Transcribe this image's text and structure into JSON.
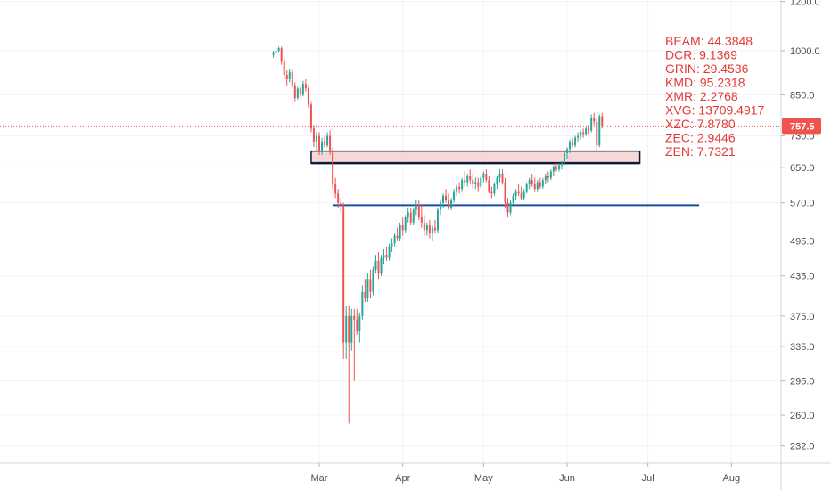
{
  "chart_data": {
    "type": "candlestick",
    "title": "",
    "xlabel": "",
    "ylabel": "",
    "y_scale": "log",
    "y_ticks": [
      "1200.0",
      "1000.0",
      "850.0",
      "757.5",
      "730.0",
      "650.0",
      "570.0",
      "495.0",
      "435.0",
      "375.0",
      "335.0",
      "295.0",
      "260.0",
      "232.0"
    ],
    "x_ticks": [
      "Mar",
      "Apr",
      "May",
      "Jun",
      "Jul",
      "Aug"
    ],
    "grid": true,
    "last_price": 757.5,
    "colors": {
      "up": "#26a69a",
      "down": "#ef5350",
      "last_price": "#ef5350",
      "zone": "#f7d3d3",
      "zone_border": "#0c1a3d",
      "support": "#1a4ea3",
      "legend_text": "#e53935"
    },
    "legend": [
      "BEAM: 44.3848",
      "DCR: 9.1369",
      "GRIN: 29.4536",
      "KMD: 95.2318",
      "XMR: 2.2768",
      "XVG: 13709.4917",
      "XZC: 7.8780",
      "ZEC: 2.9446",
      "ZEN: 7.7321"
    ],
    "drawings": {
      "resistance_zone": {
        "low": 660,
        "high": 690,
        "from": "Feb-27",
        "to": "Jun-28"
      },
      "support_line": {
        "level": 565,
        "from": "Mar-06",
        "to": "Jul-20"
      }
    },
    "candles": [
      {
        "d": "Feb-13",
        "o": 985,
        "h": 1000,
        "l": 975,
        "c": 995
      },
      {
        "d": "Feb-14",
        "o": 995,
        "h": 1010,
        "l": 985,
        "c": 1000
      },
      {
        "d": "Feb-15",
        "o": 1000,
        "h": 1015,
        "l": 995,
        "c": 1010
      },
      {
        "d": "Feb-16",
        "o": 1010,
        "h": 1015,
        "l": 950,
        "c": 960
      },
      {
        "d": "Feb-17",
        "o": 960,
        "h": 975,
        "l": 900,
        "c": 915
      },
      {
        "d": "Feb-18",
        "o": 915,
        "h": 930,
        "l": 880,
        "c": 900
      },
      {
        "d": "Feb-19",
        "o": 900,
        "h": 935,
        "l": 890,
        "c": 925
      },
      {
        "d": "Feb-20",
        "o": 925,
        "h": 935,
        "l": 870,
        "c": 880
      },
      {
        "d": "Feb-21",
        "o": 880,
        "h": 890,
        "l": 830,
        "c": 840
      },
      {
        "d": "Feb-22",
        "o": 840,
        "h": 875,
        "l": 835,
        "c": 870
      },
      {
        "d": "Feb-23",
        "o": 870,
        "h": 880,
        "l": 840,
        "c": 850
      },
      {
        "d": "Feb-24",
        "o": 850,
        "h": 895,
        "l": 845,
        "c": 885
      },
      {
        "d": "Feb-25",
        "o": 885,
        "h": 900,
        "l": 860,
        "c": 870
      },
      {
        "d": "Feb-26",
        "o": 870,
        "h": 880,
        "l": 810,
        "c": 820
      },
      {
        "d": "Feb-27",
        "o": 820,
        "h": 830,
        "l": 740,
        "c": 750
      },
      {
        "d": "Feb-28",
        "o": 750,
        "h": 760,
        "l": 700,
        "c": 715
      },
      {
        "d": "Feb-29",
        "o": 715,
        "h": 740,
        "l": 690,
        "c": 730
      },
      {
        "d": "Mar-01",
        "o": 730,
        "h": 740,
        "l": 680,
        "c": 690
      },
      {
        "d": "Mar-02",
        "o": 690,
        "h": 725,
        "l": 680,
        "c": 715
      },
      {
        "d": "Mar-03",
        "o": 715,
        "h": 730,
        "l": 700,
        "c": 705
      },
      {
        "d": "Mar-04",
        "o": 705,
        "h": 740,
        "l": 700,
        "c": 730
      },
      {
        "d": "Mar-05",
        "o": 730,
        "h": 745,
        "l": 680,
        "c": 690
      },
      {
        "d": "Mar-06",
        "o": 690,
        "h": 700,
        "l": 600,
        "c": 610
      },
      {
        "d": "Mar-07",
        "o": 610,
        "h": 625,
        "l": 580,
        "c": 590
      },
      {
        "d": "Mar-08",
        "o": 590,
        "h": 600,
        "l": 560,
        "c": 570
      },
      {
        "d": "Mar-09",
        "o": 570,
        "h": 580,
        "l": 550,
        "c": 565
      },
      {
        "d": "Mar-10",
        "o": 565,
        "h": 570,
        "l": 320,
        "c": 340
      },
      {
        "d": "Mar-11",
        "o": 340,
        "h": 390,
        "l": 320,
        "c": 375
      },
      {
        "d": "Mar-12",
        "o": 375,
        "h": 390,
        "l": 252,
        "c": 340
      },
      {
        "d": "Mar-13",
        "o": 340,
        "h": 385,
        "l": 330,
        "c": 375
      },
      {
        "d": "Mar-14",
        "o": 375,
        "h": 385,
        "l": 295,
        "c": 370
      },
      {
        "d": "Mar-15",
        "o": 370,
        "h": 385,
        "l": 350,
        "c": 355
      },
      {
        "d": "Mar-16",
        "o": 355,
        "h": 380,
        "l": 340,
        "c": 375
      },
      {
        "d": "Mar-17",
        "o": 375,
        "h": 420,
        "l": 370,
        "c": 410
      },
      {
        "d": "Mar-18",
        "o": 410,
        "h": 430,
        "l": 395,
        "c": 400
      },
      {
        "d": "Mar-19",
        "o": 400,
        "h": 440,
        "l": 395,
        "c": 430
      },
      {
        "d": "Mar-20",
        "o": 430,
        "h": 445,
        "l": 400,
        "c": 410
      },
      {
        "d": "Mar-21",
        "o": 410,
        "h": 450,
        "l": 405,
        "c": 445
      },
      {
        "d": "Mar-22",
        "o": 445,
        "h": 470,
        "l": 440,
        "c": 460
      },
      {
        "d": "Mar-23",
        "o": 460,
        "h": 475,
        "l": 430,
        "c": 440
      },
      {
        "d": "Mar-24",
        "o": 440,
        "h": 470,
        "l": 435,
        "c": 465
      },
      {
        "d": "Mar-25",
        "o": 465,
        "h": 480,
        "l": 455,
        "c": 470
      },
      {
        "d": "Mar-26",
        "o": 470,
        "h": 485,
        "l": 460,
        "c": 465
      },
      {
        "d": "Mar-27",
        "o": 465,
        "h": 490,
        "l": 460,
        "c": 485
      },
      {
        "d": "Mar-28",
        "o": 485,
        "h": 500,
        "l": 475,
        "c": 490
      },
      {
        "d": "Mar-29",
        "o": 490,
        "h": 510,
        "l": 485,
        "c": 505
      },
      {
        "d": "Mar-30",
        "o": 505,
        "h": 520,
        "l": 495,
        "c": 500
      },
      {
        "d": "Mar-31",
        "o": 500,
        "h": 530,
        "l": 495,
        "c": 525
      },
      {
        "d": "Apr-01",
        "o": 525,
        "h": 540,
        "l": 505,
        "c": 515
      },
      {
        "d": "Apr-02",
        "o": 515,
        "h": 545,
        "l": 510,
        "c": 540
      },
      {
        "d": "Apr-03",
        "o": 540,
        "h": 560,
        "l": 530,
        "c": 550
      },
      {
        "d": "Apr-04",
        "o": 550,
        "h": 560,
        "l": 525,
        "c": 530
      },
      {
        "d": "Apr-05",
        "o": 530,
        "h": 560,
        "l": 525,
        "c": 555
      },
      {
        "d": "Apr-06",
        "o": 555,
        "h": 575,
        "l": 545,
        "c": 565
      },
      {
        "d": "Apr-07",
        "o": 565,
        "h": 575,
        "l": 535,
        "c": 540
      },
      {
        "d": "Apr-08",
        "o": 540,
        "h": 565,
        "l": 520,
        "c": 530
      },
      {
        "d": "Apr-09",
        "o": 530,
        "h": 545,
        "l": 505,
        "c": 515
      },
      {
        "d": "Apr-10",
        "o": 515,
        "h": 530,
        "l": 505,
        "c": 525
      },
      {
        "d": "Apr-11",
        "o": 525,
        "h": 535,
        "l": 500,
        "c": 510
      },
      {
        "d": "Apr-12",
        "o": 510,
        "h": 525,
        "l": 495,
        "c": 520
      },
      {
        "d": "Apr-13",
        "o": 520,
        "h": 535,
        "l": 510,
        "c": 515
      },
      {
        "d": "Apr-14",
        "o": 515,
        "h": 560,
        "l": 510,
        "c": 555
      },
      {
        "d": "Apr-15",
        "o": 555,
        "h": 575,
        "l": 545,
        "c": 570
      },
      {
        "d": "Apr-16",
        "o": 570,
        "h": 590,
        "l": 560,
        "c": 585
      },
      {
        "d": "Apr-17",
        "o": 585,
        "h": 600,
        "l": 570,
        "c": 575
      },
      {
        "d": "Apr-18",
        "o": 575,
        "h": 590,
        "l": 555,
        "c": 560
      },
      {
        "d": "Apr-19",
        "o": 560,
        "h": 580,
        "l": 555,
        "c": 575
      },
      {
        "d": "Apr-20",
        "o": 575,
        "h": 600,
        "l": 570,
        "c": 595
      },
      {
        "d": "Apr-21",
        "o": 595,
        "h": 610,
        "l": 585,
        "c": 605
      },
      {
        "d": "Apr-22",
        "o": 605,
        "h": 615,
        "l": 590,
        "c": 600
      },
      {
        "d": "Apr-23",
        "o": 600,
        "h": 625,
        "l": 595,
        "c": 620
      },
      {
        "d": "Apr-24",
        "o": 620,
        "h": 640,
        "l": 605,
        "c": 615
      },
      {
        "d": "Apr-25",
        "o": 615,
        "h": 635,
        "l": 605,
        "c": 630
      },
      {
        "d": "Apr-26",
        "o": 630,
        "h": 645,
        "l": 610,
        "c": 620
      },
      {
        "d": "Apr-27",
        "o": 620,
        "h": 635,
        "l": 600,
        "c": 610
      },
      {
        "d": "Apr-28",
        "o": 610,
        "h": 625,
        "l": 600,
        "c": 615
      },
      {
        "d": "Apr-29",
        "o": 615,
        "h": 625,
        "l": 595,
        "c": 605
      },
      {
        "d": "Apr-30",
        "o": 605,
        "h": 630,
        "l": 600,
        "c": 625
      },
      {
        "d": "May-01",
        "o": 625,
        "h": 640,
        "l": 615,
        "c": 635
      },
      {
        "d": "May-02",
        "o": 635,
        "h": 645,
        "l": 615,
        "c": 620
      },
      {
        "d": "May-03",
        "o": 620,
        "h": 630,
        "l": 590,
        "c": 595
      },
      {
        "d": "May-04",
        "o": 595,
        "h": 605,
        "l": 580,
        "c": 590
      },
      {
        "d": "May-05",
        "o": 590,
        "h": 615,
        "l": 585,
        "c": 610
      },
      {
        "d": "May-06",
        "o": 610,
        "h": 630,
        "l": 600,
        "c": 625
      },
      {
        "d": "May-07",
        "o": 625,
        "h": 645,
        "l": 615,
        "c": 635
      },
      {
        "d": "May-08",
        "o": 635,
        "h": 645,
        "l": 610,
        "c": 615
      },
      {
        "d": "May-09",
        "o": 615,
        "h": 625,
        "l": 560,
        "c": 570
      },
      {
        "d": "May-10",
        "o": 570,
        "h": 580,
        "l": 540,
        "c": 550
      },
      {
        "d": "May-11",
        "o": 550,
        "h": 575,
        "l": 545,
        "c": 570
      },
      {
        "d": "May-12",
        "o": 570,
        "h": 590,
        "l": 565,
        "c": 585
      },
      {
        "d": "May-13",
        "o": 585,
        "h": 600,
        "l": 575,
        "c": 595
      },
      {
        "d": "May-14",
        "o": 595,
        "h": 610,
        "l": 585,
        "c": 590
      },
      {
        "d": "May-15",
        "o": 590,
        "h": 605,
        "l": 575,
        "c": 580
      },
      {
        "d": "May-16",
        "o": 580,
        "h": 600,
        "l": 575,
        "c": 595
      },
      {
        "d": "May-17",
        "o": 595,
        "h": 615,
        "l": 590,
        "c": 610
      },
      {
        "d": "May-18",
        "o": 610,
        "h": 625,
        "l": 600,
        "c": 620
      },
      {
        "d": "May-19",
        "o": 620,
        "h": 635,
        "l": 605,
        "c": 610
      },
      {
        "d": "May-20",
        "o": 610,
        "h": 625,
        "l": 595,
        "c": 600
      },
      {
        "d": "May-21",
        "o": 600,
        "h": 620,
        "l": 595,
        "c": 615
      },
      {
        "d": "May-22",
        "o": 615,
        "h": 625,
        "l": 600,
        "c": 605
      },
      {
        "d": "May-23",
        "o": 605,
        "h": 625,
        "l": 600,
        "c": 620
      },
      {
        "d": "May-24",
        "o": 620,
        "h": 635,
        "l": 610,
        "c": 630
      },
      {
        "d": "May-25",
        "o": 630,
        "h": 640,
        "l": 615,
        "c": 625
      },
      {
        "d": "May-26",
        "o": 625,
        "h": 645,
        "l": 620,
        "c": 640
      },
      {
        "d": "May-27",
        "o": 640,
        "h": 655,
        "l": 630,
        "c": 650
      },
      {
        "d": "May-28",
        "o": 650,
        "h": 660,
        "l": 640,
        "c": 645
      },
      {
        "d": "May-29",
        "o": 645,
        "h": 660,
        "l": 640,
        "c": 655
      },
      {
        "d": "May-30",
        "o": 655,
        "h": 665,
        "l": 645,
        "c": 660
      },
      {
        "d": "May-31",
        "o": 660,
        "h": 690,
        "l": 655,
        "c": 685
      },
      {
        "d": "Jun-01",
        "o": 685,
        "h": 700,
        "l": 670,
        "c": 695
      },
      {
        "d": "Jun-02",
        "o": 695,
        "h": 720,
        "l": 685,
        "c": 715
      },
      {
        "d": "Jun-03",
        "o": 715,
        "h": 725,
        "l": 700,
        "c": 705
      },
      {
        "d": "Jun-04",
        "o": 705,
        "h": 730,
        "l": 700,
        "c": 725
      },
      {
        "d": "Jun-05",
        "o": 725,
        "h": 740,
        "l": 715,
        "c": 730
      },
      {
        "d": "Jun-06",
        "o": 730,
        "h": 745,
        "l": 720,
        "c": 740
      },
      {
        "d": "Jun-07",
        "o": 740,
        "h": 750,
        "l": 725,
        "c": 735
      },
      {
        "d": "Jun-08",
        "o": 735,
        "h": 755,
        "l": 730,
        "c": 750
      },
      {
        "d": "Jun-09",
        "o": 750,
        "h": 760,
        "l": 735,
        "c": 745
      },
      {
        "d": "Jun-10",
        "o": 745,
        "h": 790,
        "l": 740,
        "c": 780
      },
      {
        "d": "Jun-11",
        "o": 780,
        "h": 795,
        "l": 760,
        "c": 770
      },
      {
        "d": "Jun-12",
        "o": 770,
        "h": 780,
        "l": 690,
        "c": 705
      },
      {
        "d": "Jun-13",
        "o": 705,
        "h": 790,
        "l": 700,
        "c": 785
      },
      {
        "d": "Jun-14",
        "o": 785,
        "h": 795,
        "l": 750,
        "c": 757.5
      }
    ]
  }
}
